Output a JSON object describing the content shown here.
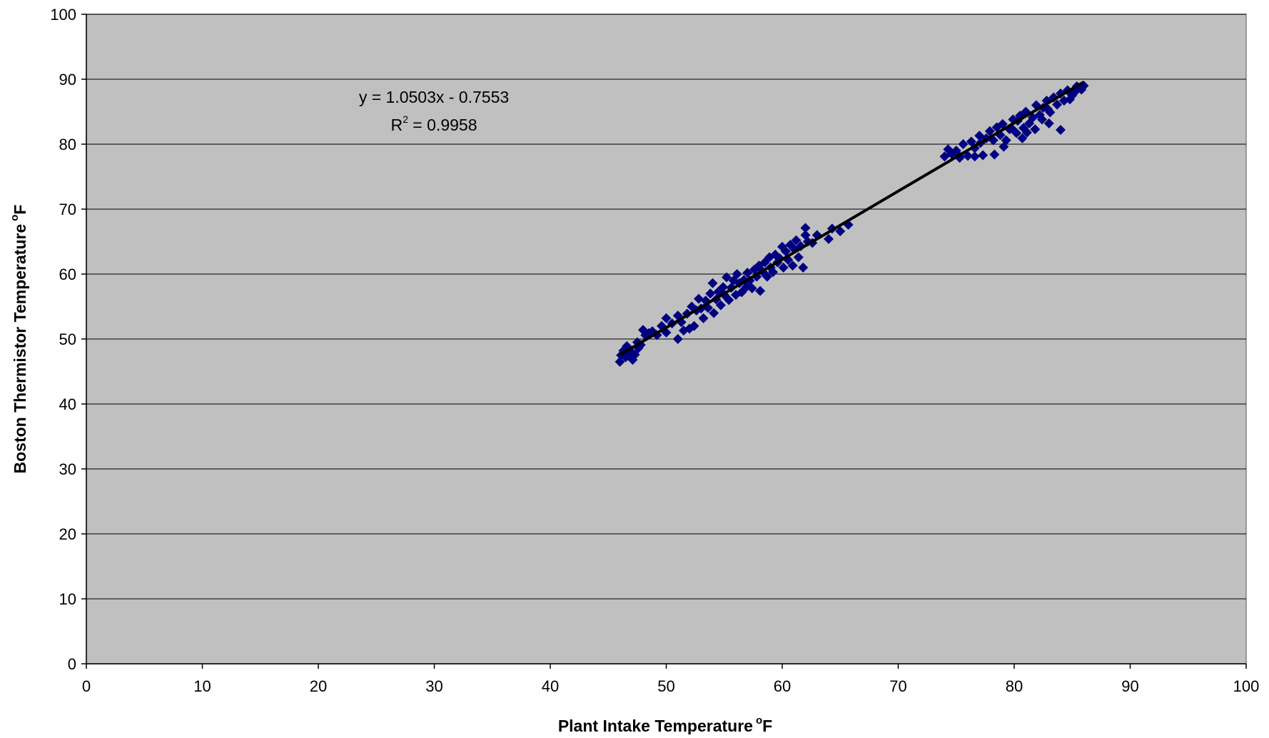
{
  "chart_data": {
    "type": "scatter",
    "xlabel": "Plant Intake Temperature",
    "xlabel_sup": "o",
    "xlabel_unit": "F",
    "ylabel": "Boston Thermistor Temperature",
    "ylabel_sup": "o",
    "ylabel_unit": "F",
    "xlim": [
      0,
      100
    ],
    "ylim": [
      0,
      100
    ],
    "xticks": [
      "0",
      "10",
      "20",
      "30",
      "40",
      "50",
      "60",
      "70",
      "80",
      "90",
      "100"
    ],
    "yticks": [
      "0",
      "10",
      "20",
      "30",
      "40",
      "50",
      "60",
      "70",
      "80",
      "90",
      "100"
    ],
    "grid": "horizontal",
    "legend": "none",
    "colors": {
      "plot_background": "#c0c0c0",
      "marker": "#000080",
      "trendline": "#000000",
      "gridline": "#000000"
    },
    "marker": "diamond",
    "trendline": {
      "slope": 1.0503,
      "intercept": -0.7553,
      "x_range": [
        46,
        86
      ],
      "equation_label": "y = 1.0503x - 0.7553",
      "r2_prefix": "R",
      "r2_sup": "2",
      "r2_value": " = 0.9958"
    },
    "series": [
      {
        "points": [
          [
            46.0,
            46.5
          ],
          [
            46.1,
            47.5
          ],
          [
            46.3,
            48.2
          ],
          [
            46.5,
            47.2
          ],
          [
            46.6,
            48.9
          ],
          [
            46.8,
            47.8
          ],
          [
            47.0,
            48.0
          ],
          [
            47.1,
            46.8
          ],
          [
            47.3,
            47.6
          ],
          [
            47.5,
            49.5
          ],
          [
            47.6,
            48.6
          ],
          [
            47.8,
            49.1
          ],
          [
            48.0,
            51.4
          ],
          [
            48.2,
            50.6
          ],
          [
            48.5,
            50.9
          ],
          [
            48.8,
            51.2
          ],
          [
            49.2,
            50.6
          ],
          [
            49.6,
            52.0
          ],
          [
            50.0,
            53.2
          ],
          [
            50.0,
            51.0
          ],
          [
            50.5,
            52.4
          ],
          [
            51.0,
            50.0
          ],
          [
            51.0,
            53.6
          ],
          [
            51.3,
            52.6
          ],
          [
            51.5,
            51.3
          ],
          [
            51.8,
            53.9
          ],
          [
            52.0,
            51.6
          ],
          [
            52.2,
            55.0
          ],
          [
            52.4,
            52.0
          ],
          [
            52.6,
            54.4
          ],
          [
            52.8,
            56.2
          ],
          [
            53.0,
            54.7
          ],
          [
            53.2,
            53.2
          ],
          [
            53.4,
            55.9
          ],
          [
            53.6,
            54.8
          ],
          [
            53.8,
            57.0
          ],
          [
            54.0,
            58.6
          ],
          [
            54.1,
            54.0
          ],
          [
            54.3,
            56.1
          ],
          [
            54.5,
            57.3
          ],
          [
            54.7,
            55.2
          ],
          [
            54.9,
            58.0
          ],
          [
            55.0,
            56.8
          ],
          [
            55.2,
            59.5
          ],
          [
            55.4,
            56.0
          ],
          [
            55.6,
            57.9
          ],
          [
            55.8,
            59.0
          ],
          [
            56.0,
            56.8
          ],
          [
            56.1,
            60.0
          ],
          [
            56.3,
            58.6
          ],
          [
            56.5,
            57.2
          ],
          [
            56.7,
            59.1
          ],
          [
            56.9,
            58.0
          ],
          [
            57.0,
            60.2
          ],
          [
            57.2,
            59.0
          ],
          [
            57.4,
            57.8
          ],
          [
            57.6,
            60.7
          ],
          [
            57.8,
            59.6
          ],
          [
            58.0,
            61.3
          ],
          [
            58.1,
            57.4
          ],
          [
            58.3,
            60.4
          ],
          [
            58.5,
            61.8
          ],
          [
            58.7,
            59.6
          ],
          [
            58.9,
            62.6
          ],
          [
            59.0,
            61.0
          ],
          [
            59.2,
            60.3
          ],
          [
            59.4,
            63.0
          ],
          [
            59.6,
            61.8
          ],
          [
            59.8,
            62.4
          ],
          [
            60.0,
            64.2
          ],
          [
            60.1,
            61.0
          ],
          [
            60.3,
            63.5
          ],
          [
            60.5,
            62.2
          ],
          [
            60.7,
            64.5
          ],
          [
            60.9,
            61.3
          ],
          [
            61.0,
            63.9
          ],
          [
            61.2,
            65.2
          ],
          [
            61.4,
            62.6
          ],
          [
            61.6,
            64.3
          ],
          [
            61.8,
            61.0
          ],
          [
            62.0,
            67.1
          ],
          [
            62.0,
            66.0
          ],
          [
            62.2,
            65.0
          ],
          [
            62.6,
            64.8
          ],
          [
            63.0,
            66.0
          ],
          [
            64.0,
            65.4
          ],
          [
            64.3,
            67.0
          ],
          [
            65.0,
            66.6
          ],
          [
            65.7,
            67.6
          ],
          [
            74.0,
            78.1
          ],
          [
            74.3,
            79.2
          ],
          [
            74.6,
            78.5
          ],
          [
            75.0,
            79.0
          ],
          [
            75.3,
            77.9
          ],
          [
            75.6,
            80.0
          ],
          [
            76.0,
            78.2
          ],
          [
            76.3,
            80.4
          ],
          [
            76.6,
            79.4
          ],
          [
            77.0,
            81.3
          ],
          [
            77.3,
            78.3
          ],
          [
            77.6,
            80.9
          ],
          [
            77.9,
            82.0
          ],
          [
            78.2,
            80.6
          ],
          [
            78.5,
            82.6
          ],
          [
            78.8,
            81.4
          ],
          [
            79.0,
            83.1
          ],
          [
            79.3,
            80.6
          ],
          [
            79.6,
            82.3
          ],
          [
            79.9,
            83.8
          ],
          [
            80.2,
            81.7
          ],
          [
            80.5,
            84.4
          ],
          [
            80.8,
            82.5
          ],
          [
            81.0,
            85.0
          ],
          [
            81.3,
            83.2
          ],
          [
            81.6,
            84.1
          ],
          [
            81.9,
            86.0
          ],
          [
            82.2,
            84.5
          ],
          [
            82.5,
            85.6
          ],
          [
            82.8,
            86.7
          ],
          [
            83.1,
            84.9
          ],
          [
            83.4,
            87.2
          ],
          [
            83.7,
            86.1
          ],
          [
            84.0,
            87.8
          ],
          [
            84.3,
            86.7
          ],
          [
            84.6,
            88.3
          ],
          [
            85.0,
            87.5
          ],
          [
            85.4,
            88.9
          ],
          [
            85.8,
            88.4
          ],
          [
            86.0,
            89.0
          ],
          [
            84.0,
            82.2
          ],
          [
            83.0,
            83.2
          ],
          [
            78.3,
            78.4
          ],
          [
            76.6,
            78.1
          ],
          [
            79.1,
            79.6
          ],
          [
            80.7,
            80.9
          ],
          [
            81.8,
            82.3
          ],
          [
            82.4,
            83.8
          ],
          [
            75.2,
            78.3
          ],
          [
            77.1,
            80.2
          ],
          [
            79.8,
            82.4
          ],
          [
            80.3,
            83.6
          ],
          [
            81.1,
            81.8
          ],
          [
            82.9,
            85.4
          ],
          [
            84.8,
            86.9
          ],
          [
            85.2,
            88.0
          ]
        ]
      }
    ]
  }
}
